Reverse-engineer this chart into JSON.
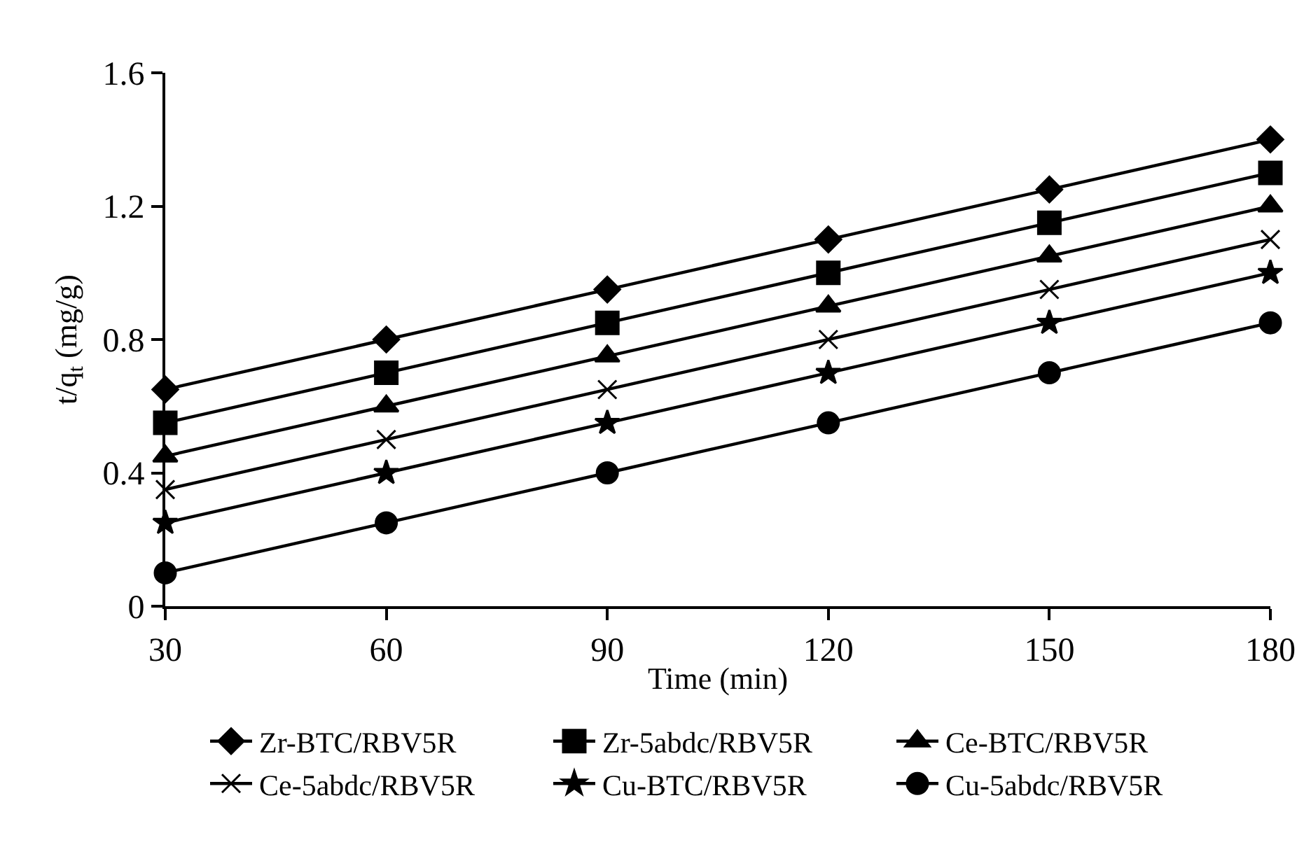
{
  "chart_data": {
    "type": "line",
    "xlabel": "Time (min)",
    "ylabel": "t/q$_{t}$ (mg/g)",
    "x": [
      30,
      60,
      90,
      120,
      150,
      180
    ],
    "xlim": [
      30,
      180
    ],
    "xticks": [
      30,
      60,
      90,
      120,
      150,
      180
    ],
    "ylim": [
      0,
      1.6
    ],
    "yticks": [
      0,
      0.4,
      0.8,
      1.2,
      1.6
    ],
    "legend": "bottom",
    "line_style": "solid",
    "series": [
      {
        "name": "Zr-BTC/RBV5R",
        "color": "#000000",
        "marker": "diamond",
        "values": [
          0.65,
          0.8,
          0.95,
          1.1,
          1.25,
          1.4
        ]
      },
      {
        "name": "Zr-5abdc/RBV5R",
        "color": "#000000",
        "marker": "square",
        "values": [
          0.55,
          0.7,
          0.85,
          1.0,
          1.15,
          1.3
        ]
      },
      {
        "name": "Ce-BTC/RBV5R",
        "color": "#000000",
        "marker": "triangle",
        "values": [
          0.45,
          0.6,
          0.75,
          0.9,
          1.05,
          1.2
        ]
      },
      {
        "name": "Ce-5abdc/RBV5R",
        "color": "#000000",
        "marker": "cross",
        "values": [
          0.35,
          0.5,
          0.65,
          0.8,
          0.95,
          1.1
        ]
      },
      {
        "name": "Cu-BTC/RBV5R",
        "color": "#000000",
        "marker": "star",
        "values": [
          0.25,
          0.4,
          0.55,
          0.7,
          0.85,
          1.0
        ]
      },
      {
        "name": "Cu-5abdc/RBV5R",
        "color": "#000000",
        "marker": "circle",
        "values": [
          0.1,
          0.25,
          0.4,
          0.55,
          0.7,
          0.85
        ]
      }
    ]
  }
}
